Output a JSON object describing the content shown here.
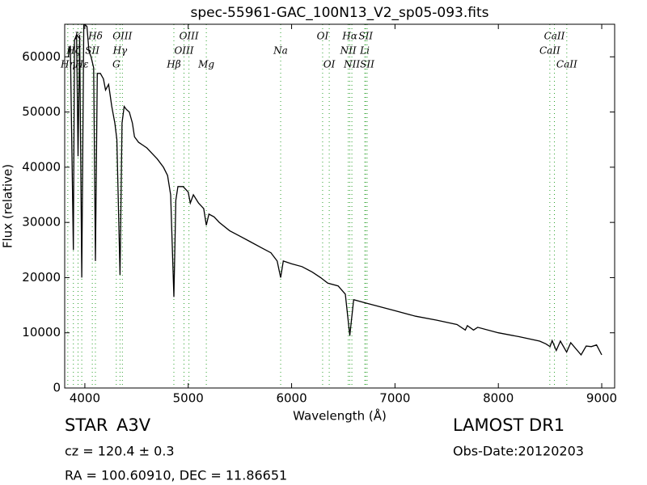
{
  "chart_data": {
    "type": "line",
    "title": "spec-55961-GAC_100N13_V2_sp05-093.fits",
    "xlabel": "Wavelength (Å)",
    "ylabel": "Flux (relative)",
    "xlim": [
      3805,
      9125
    ],
    "ylim": [
      0,
      65900
    ],
    "xticks": [
      4000,
      5000,
      6000,
      7000,
      8000,
      9000
    ],
    "yticks": [
      0,
      10000,
      20000,
      30000,
      40000,
      50000,
      60000
    ],
    "color": "#000000",
    "line_color": "#2ca02c",
    "x": [
      3840,
      3860,
      3889,
      3900,
      3920,
      3934,
      3950,
      3970,
      3990,
      4020,
      4040,
      4060,
      4085,
      4102,
      4120,
      4150,
      4180,
      4200,
      4230,
      4260,
      4290,
      4310,
      4340,
      4360,
      4380,
      4400,
      4430,
      4460,
      4480,
      4520,
      4560,
      4600,
      4650,
      4700,
      4760,
      4800,
      4830,
      4861,
      4880,
      4900,
      4950,
      5000,
      5020,
      5050,
      5100,
      5150,
      5175,
      5200,
      5250,
      5300,
      5400,
      5500,
      5600,
      5700,
      5800,
      5860,
      5894,
      5920,
      6000,
      6100,
      6200,
      6280,
      6350,
      6450,
      6520,
      6563,
      6600,
      6700,
      6800,
      7000,
      7200,
      7400,
      7600,
      7680,
      7700,
      7760,
      7800,
      8000,
      8200,
      8400,
      8460,
      8500,
      8520,
      8560,
      8600,
      8660,
      8700,
      8800,
      8850,
      8900,
      8950,
      9000
    ],
    "y": [
      60000,
      62000,
      25000,
      63000,
      64000,
      42000,
      64000,
      20000,
      66000,
      65500,
      61000,
      60000,
      58000,
      23000,
      57000,
      57000,
      56000,
      54000,
      55000,
      51000,
      48000,
      45000,
      20500,
      48000,
      51000,
      50500,
      50000,
      48000,
      45500,
      44500,
      44000,
      43500,
      42500,
      41500,
      40000,
      38500,
      35000,
      16500,
      34000,
      36500,
      36500,
      35500,
      33500,
      35000,
      33500,
      32500,
      29500,
      31500,
      31000,
      30000,
      28500,
      27500,
      26500,
      25500,
      24500,
      23000,
      20000,
      23000,
      22500,
      22000,
      21000,
      20000,
      19000,
      18500,
      17000,
      9500,
      16000,
      15500,
      15000,
      14000,
      13000,
      12300,
      11500,
      10500,
      11300,
      10500,
      11000,
      10000,
      9300,
      8500,
      8000,
      7500,
      8600,
      6800,
      8500,
      6500,
      8200,
      6000,
      7600,
      7500,
      7800,
      6000
    ],
    "annotations": [
      {
        "label": "K",
        "x": 3934,
        "y": 63700
      },
      {
        "label": "Hδ",
        "x": 4102,
        "y": 63700
      },
      {
        "label": "OIII",
        "x": 4363,
        "y": 63700
      },
      {
        "label": "OIII",
        "x": 5007,
        "y": 63700
      },
      {
        "label": "OI",
        "x": 6300,
        "y": 63700
      },
      {
        "label": "Hα",
        "x": 6563,
        "y": 63700
      },
      {
        "label": "SII",
        "x": 6717,
        "y": 63700
      },
      {
        "label": "CaII",
        "x": 8542,
        "y": 63700
      },
      {
        "label": "Hζ",
        "x": 3889,
        "y": 61050
      },
      {
        "label": "SII",
        "x": 4072,
        "y": 61050
      },
      {
        "label": "Hγ",
        "x": 4340,
        "y": 61050
      },
      {
        "label": "OIII",
        "x": 4959,
        "y": 61050
      },
      {
        "label": "Na",
        "x": 5894,
        "y": 61050
      },
      {
        "label": "NII",
        "x": 6548,
        "y": 61050
      },
      {
        "label": "Li",
        "x": 6708,
        "y": 61050
      },
      {
        "label": "CaII",
        "x": 8498,
        "y": 61050
      },
      {
        "label": "Hη",
        "x": 3835,
        "y": 58550
      },
      {
        "label": "Hε",
        "x": 3970,
        "y": 58550
      },
      {
        "label": "G",
        "x": 4304,
        "y": 58550
      },
      {
        "label": "Hβ",
        "x": 4861,
        "y": 58550
      },
      {
        "label": "Mg",
        "x": 5175,
        "y": 58550
      },
      {
        "label": "OI",
        "x": 6364,
        "y": 58550
      },
      {
        "label": "NII",
        "x": 6583,
        "y": 58550
      },
      {
        "label": "SII",
        "x": 6731,
        "y": 58550
      },
      {
        "label": "CaII",
        "x": 8662,
        "y": 58550
      }
    ]
  },
  "info": {
    "object": "STAR",
    "subclass": "A3V",
    "survey": "LAMOST DR1",
    "cz": "cz = 120.4 ± 0.3",
    "obs_date": "Obs-Date:20120203",
    "coords": "RA = 100.60910, DEC = 11.86651"
  }
}
